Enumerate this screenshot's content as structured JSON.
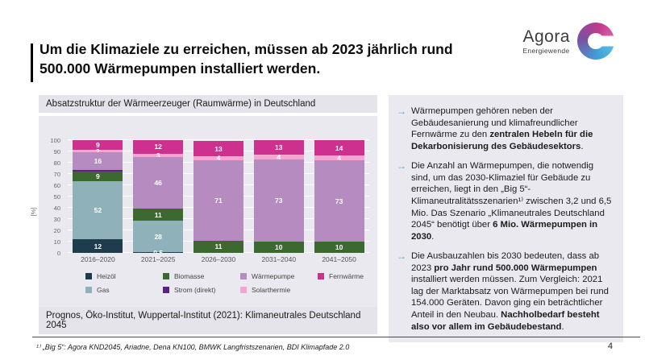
{
  "slide": {
    "title": "Um die Klimaziele zu erreichen, müssen ab 2023 jährlich rund 500.000 Wärmepumpen installiert werden.",
    "footnote": "¹⁾ „Big 5“: Agora KND2045, Ariadne, Dena KN100, BMWK Langfristszenarien, BDI Klimapfade 2.0",
    "page_number": "4"
  },
  "logo": {
    "name": "Agora",
    "subtitle": "Energiewende"
  },
  "chart_panel": {
    "header": "Absatzstruktur der Wärmeerzeuger (Raumwärme) in Deutschland",
    "source": "Prognos, Öko-Institut, Wuppertal-Institut (2021): Klimaneutrales Deutschland 2045"
  },
  "chart_data": {
    "type": "bar",
    "stacked": true,
    "title": "Absatzstruktur der Wärmeerzeuger (Raumwärme) in Deutschland",
    "ylabel": "[%]",
    "ylim": [
      0,
      100
    ],
    "yticks": [
      0,
      10,
      20,
      30,
      40,
      50,
      60,
      70,
      80,
      90,
      100
    ],
    "grid": true,
    "legend_position": "bottom",
    "categories": [
      "2016–2020",
      "2021–2025",
      "2026–2030",
      "2031–2040",
      "2041–2050"
    ],
    "series": [
      {
        "name": "Heizöl",
        "color": "#1e3c4b",
        "values": [
          12,
          0.5,
          0,
          0,
          0
        ],
        "display": [
          "12",
          "0,5",
          "",
          "",
          ""
        ]
      },
      {
        "name": "Gas",
        "color": "#8fb1ba",
        "values": [
          52,
          28,
          0,
          0,
          0
        ],
        "display": [
          "52",
          "28",
          "",
          "",
          ""
        ]
      },
      {
        "name": "Biomasse",
        "color": "#3c692f",
        "values": [
          9,
          11,
          11,
          10,
          10
        ],
        "display": [
          "9",
          "11",
          "11",
          "10",
          "10"
        ]
      },
      {
        "name": "Strom (direkt)",
        "color": "#5b2383",
        "values": [
          1,
          0,
          0,
          0,
          0
        ],
        "display": [
          "",
          "",
          "",
          "",
          ""
        ]
      },
      {
        "name": "Wärmepumpe",
        "color": "#b58bc0",
        "values": [
          16,
          46,
          71,
          73,
          73
        ],
        "display": [
          "16",
          "46",
          "71",
          "73",
          "73"
        ]
      },
      {
        "name": "Solarthermie",
        "color": "#f4a6cf",
        "values": [
          2,
          3,
          4,
          4,
          4
        ],
        "display": [
          "2",
          "3",
          "4",
          "4",
          "4"
        ]
      },
      {
        "name": "Fernwärme",
        "color": "#ce3090",
        "values": [
          9,
          12,
          13,
          13,
          14
        ],
        "display": [
          "9",
          "12",
          "13",
          "13",
          "14"
        ]
      }
    ],
    "legend_order": [
      "Heizöl",
      "Gas",
      "Biomasse",
      "Strom (direkt)",
      "Wärmepumpe",
      "Solarthermie",
      "Fernwärme"
    ]
  },
  "bullets": {
    "arrow_char": "→",
    "items": [
      {
        "runs": [
          {
            "t": "Wärmepumpen gehören neben der Gebäudesanierung und klimafreundlicher Fernwärme zu den ",
            "b": false
          },
          {
            "t": "zentralen Hebeln für die Dekarbonisierung des Gebäudesektors",
            "b": true
          },
          {
            "t": ".",
            "b": false
          }
        ]
      },
      {
        "runs": [
          {
            "t": "Die Anzahl an Wärmepumpen, die notwendig sind, um das 2030-Klimaziel für Gebäude zu erreichen, liegt in den „Big 5“-Klimaneutralitätsszenarien¹⁾ zwischen 3,2 und 6,5 Mio. Das Szenario „Klimaneutrales Deutschland 2045“ benötigt über ",
            "b": false
          },
          {
            "t": "6 Mio. Wärmepumpen in 2030",
            "b": true
          },
          {
            "t": ".",
            "b": false
          }
        ]
      },
      {
        "runs": [
          {
            "t": "Die Ausbauzahlen bis 2030 bedeuten, dass ab 2023 ",
            "b": false
          },
          {
            "t": "pro Jahr rund 500.000 Wärmepumpen",
            "b": true
          },
          {
            "t": " installiert werden müssen. Zum Vergleich: 2021 lag der Marktabsatz von Wärmepumpen bei rund 154.000 Geräten. Davon ging ein beträchtlicher Anteil in den Neubau. ",
            "b": false
          },
          {
            "t": "Nachholbedarf besteht also vor allem im Gebäudebestand",
            "b": true
          },
          {
            "t": ".",
            "b": false
          }
        ]
      }
    ]
  },
  "colors": {
    "accent_arrow_blue": "#4e9dd6",
    "panel_background": "#e9e9ef",
    "strip_background": "#e4e4ea",
    "logo_gradient": [
      "#d95fa8",
      "#c23a8e",
      "#7c50a0",
      "#3f9fd8",
      "#57bde5"
    ]
  }
}
